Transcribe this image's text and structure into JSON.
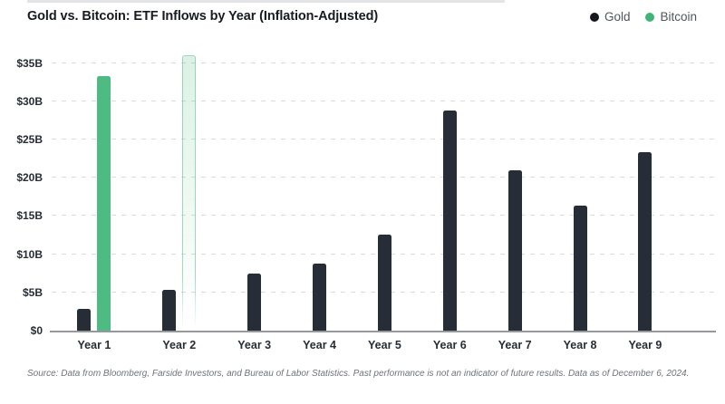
{
  "header": {
    "title": "Gold vs. Bitcoin: ETF Inflows by Year (Inflation-Adjusted)",
    "legend": [
      {
        "label": "Gold",
        "color": "#15181c"
      },
      {
        "label": "Bitcoin",
        "color": "#42b377"
      }
    ]
  },
  "footer": {
    "source": "Source: Data from Bloomberg, Farside Investors, and Bureau of Labor Statistics. Past performance is not an indicator of future results. Data as of December 6, 2024."
  },
  "chart_data": {
    "type": "bar",
    "title": "Gold vs. Bitcoin: ETF Inflows by Year (Inflation-Adjusted)",
    "units": "$B",
    "categories": [
      "Year 1",
      "Year 2",
      "Year 3",
      "Year 4",
      "Year 5",
      "Year 6",
      "Year 7",
      "Year 8",
      "Year 9"
    ],
    "series": [
      {
        "name": "Gold",
        "color": "#262d36",
        "values": [
          2.8,
          5.3,
          7.5,
          8.8,
          12.6,
          28.8,
          21.0,
          16.3,
          23.3
        ]
      },
      {
        "name": "Bitcoin",
        "color": "#4dbb82",
        "values": [
          33.3,
          36.0,
          null,
          null,
          null,
          null,
          null,
          null,
          null
        ],
        "bar_styles": [
          "solid",
          "ghost",
          null,
          null,
          null,
          null,
          null,
          null,
          null
        ],
        "ghost_border": "rgba(109,199,153,0.65)",
        "ghost_fill_top": "rgba(77,187,130,0.20)",
        "ghost_fill_bottom": "rgba(77,187,130,0.02)",
        "note": "Year 2 Bitcoin bar rendered as faded outline (projected)"
      }
    ],
    "y_ticks": [
      {
        "value": 0,
        "label": "$0"
      },
      {
        "value": 5,
        "label": "$5B"
      },
      {
        "value": 10,
        "label": "$10B"
      },
      {
        "value": 15,
        "label": "$15B"
      },
      {
        "value": 20,
        "label": "$20B"
      },
      {
        "value": 25,
        "label": "$25B"
      },
      {
        "value": 30,
        "label": "$30B"
      },
      {
        "value": 35,
        "label": "$35B"
      }
    ],
    "ylim": [
      0,
      36.5
    ],
    "xlabel": "",
    "ylabel": "",
    "grid": "horizontal-dashed",
    "legend_position": "top-right"
  }
}
